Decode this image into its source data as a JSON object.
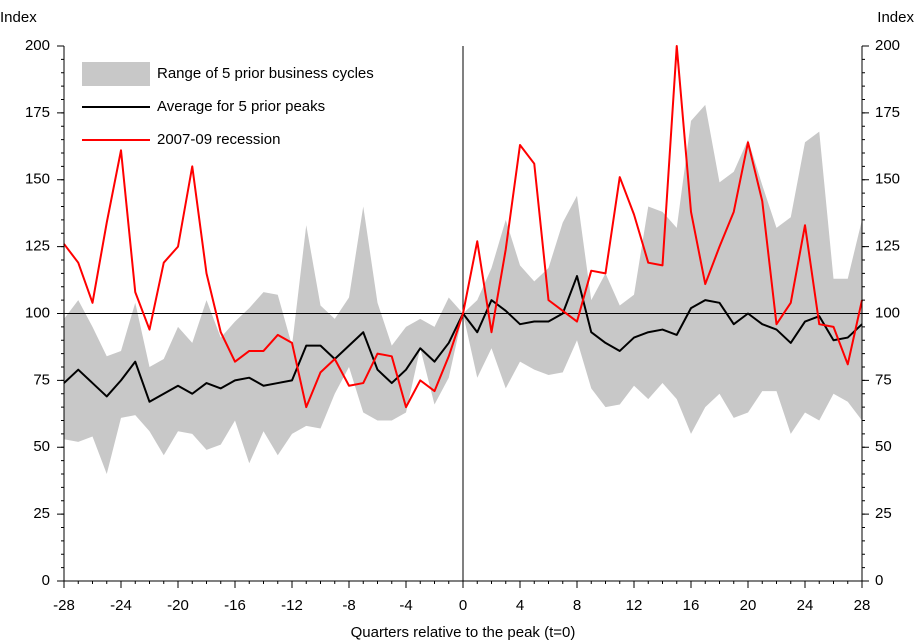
{
  "chart_data": {
    "type": "line",
    "ylabel": "Index",
    "xlabel": "Quarters relative to the peak (t=0)",
    "x": [
      -28,
      -27,
      -26,
      -25,
      -24,
      -23,
      -22,
      -21,
      -20,
      -19,
      -18,
      -17,
      -16,
      -15,
      -14,
      -13,
      -12,
      -11,
      -10,
      -9,
      -8,
      -7,
      -6,
      -5,
      -4,
      -3,
      -2,
      -1,
      0,
      1,
      2,
      3,
      4,
      5,
      6,
      7,
      8,
      9,
      10,
      11,
      12,
      13,
      14,
      15,
      16,
      17,
      18,
      19,
      20,
      21,
      22,
      23,
      24,
      25,
      26,
      27,
      28
    ],
    "xlim": [
      -28,
      28
    ],
    "xticks": [
      -28,
      -24,
      -20,
      -16,
      -12,
      -8,
      -4,
      0,
      4,
      8,
      12,
      16,
      20,
      24,
      28
    ],
    "ylim": [
      0,
      200
    ],
    "yticks": [
      0,
      25,
      50,
      75,
      100,
      125,
      150,
      175,
      200
    ],
    "reference_lines": {
      "x": 0,
      "y": 100
    },
    "legend": "upper-left",
    "series": [
      {
        "name": "Range of 5 prior business cycles",
        "color": "#c8c8c8",
        "type": "band",
        "upper": [
          98,
          105,
          95,
          84,
          86,
          104,
          80,
          83,
          95,
          89,
          105,
          91,
          97,
          102,
          108,
          107,
          88,
          133,
          103,
          98,
          106,
          140,
          104,
          88,
          95,
          98,
          95,
          106,
          100,
          105,
          117,
          135,
          118,
          112,
          117,
          134,
          144,
          105,
          115,
          103,
          107,
          140,
          138,
          132,
          172,
          178,
          149,
          153,
          165,
          148,
          132,
          136,
          164,
          168,
          113,
          113,
          135
        ],
        "lower": [
          53,
          52,
          54,
          40,
          61,
          62,
          56,
          47,
          56,
          55,
          49,
          51,
          60,
          44,
          56,
          47,
          55,
          58,
          57,
          70,
          80,
          63,
          60,
          60,
          63,
          87,
          66,
          76,
          100,
          76,
          87,
          72,
          82,
          79,
          77,
          78,
          90,
          72,
          65,
          66,
          73,
          68,
          74,
          68,
          55,
          65,
          70,
          61,
          63,
          71,
          71,
          55,
          63,
          60,
          70,
          67,
          60
        ]
      },
      {
        "name": "Average for 5 prior peaks",
        "color": "#000000",
        "values": [
          74,
          79,
          74,
          69,
          75,
          82,
          67,
          70,
          73,
          70,
          74,
          72,
          75,
          76,
          73,
          74,
          75,
          88,
          88,
          83,
          88,
          93,
          79,
          74,
          79,
          87,
          82,
          89,
          100,
          93,
          105,
          101,
          96,
          97,
          97,
          100,
          114,
          93,
          89,
          86,
          91,
          93,
          94,
          92,
          102,
          105,
          104,
          96,
          100,
          96,
          94,
          89,
          97,
          99,
          90,
          91,
          96
        ]
      },
      {
        "name": "2007-09 recession",
        "color": "#ff0000",
        "values": [
          126,
          119,
          104,
          134,
          161,
          108,
          94,
          119,
          125,
          155,
          115,
          93,
          82,
          86,
          86,
          92,
          89,
          65,
          78,
          83,
          73,
          74,
          85,
          84,
          65,
          75,
          71,
          84,
          100,
          127,
          93,
          124,
          163,
          156,
          105,
          101,
          97,
          116,
          115,
          151,
          137,
          119,
          118,
          200,
          138,
          111,
          125,
          138,
          164,
          142,
          96,
          104,
          133,
          96,
          95,
          81,
          105
        ]
      }
    ]
  }
}
